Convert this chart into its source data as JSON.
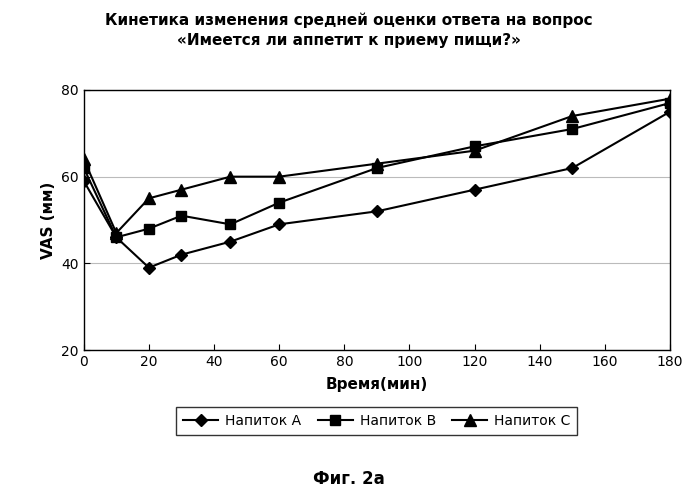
{
  "title_line1": "Кинетика изменения средней оценки ответа на вопрос",
  "title_line2": "«Имеется ли аппетит к приему пищи?»",
  "xlabel": "Время(мин)",
  "ylabel": "VAS (мм)",
  "caption": "Фиг. 2а",
  "x": [
    0,
    10,
    20,
    30,
    45,
    60,
    90,
    120,
    150,
    180
  ],
  "napitok_A": [
    59,
    46,
    39,
    42,
    45,
    49,
    52,
    57,
    62,
    75
  ],
  "napitok_B": [
    62,
    46,
    48,
    51,
    49,
    54,
    62,
    67,
    71,
    77
  ],
  "napitok_C": [
    64,
    47,
    55,
    57,
    60,
    60,
    63,
    66,
    74,
    78
  ],
  "legend_A": "Напиток A",
  "legend_B": "Напиток B",
  "legend_C": "Напиток C",
  "color": "#000000",
  "ylim": [
    20,
    80
  ],
  "xlim": [
    0,
    180
  ],
  "yticks": [
    20,
    40,
    60,
    80
  ],
  "xticks": [
    0,
    20,
    40,
    60,
    80,
    100,
    120,
    140,
    160,
    180
  ],
  "background": "#ffffff",
  "grid_color": "#bbbbbb"
}
